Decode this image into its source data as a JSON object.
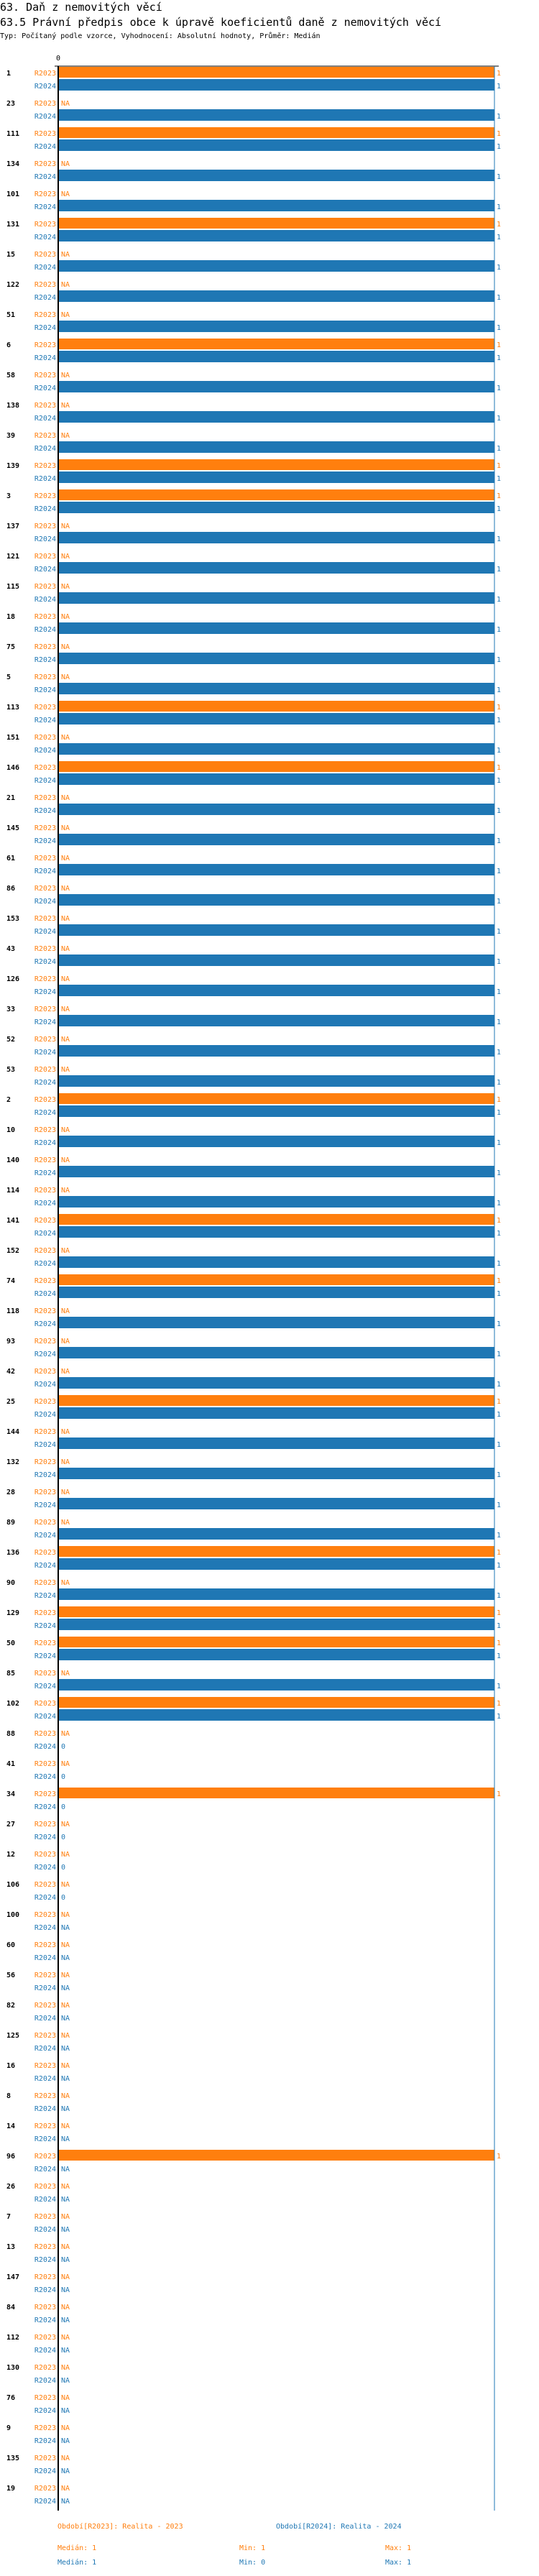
{
  "header": {
    "title": "63. Daň z nemovitých věcí",
    "subtitle": "63.5 Právní předpis obce k úpravě koeficientů daně z nemovitých věcí",
    "info": "Typ: Počítaný podle vzorce, Vyhodnocení: Absolutní hodnoty, Průměr: Medián"
  },
  "colors": {
    "R2023": "#ff7f0e",
    "R2024": "#1f77b4"
  },
  "chart_data": {
    "type": "bar",
    "orientation": "horizontal",
    "xlim": [
      0,
      1
    ],
    "x_ticks": [
      "0"
    ],
    "series_names": [
      "R2023",
      "R2024"
    ],
    "na_label": "NA",
    "groups": [
      {
        "name": "1",
        "R2023": 1,
        "R2024": 1
      },
      {
        "name": "23",
        "R2023": null,
        "R2024": 1
      },
      {
        "name": "111",
        "R2023": 1,
        "R2024": 1
      },
      {
        "name": "134",
        "R2023": null,
        "R2024": 1
      },
      {
        "name": "101",
        "R2023": null,
        "R2024": 1
      },
      {
        "name": "131",
        "R2023": 1,
        "R2024": 1
      },
      {
        "name": "15",
        "R2023": null,
        "R2024": 1
      },
      {
        "name": "122",
        "R2023": null,
        "R2024": 1
      },
      {
        "name": "51",
        "R2023": null,
        "R2024": 1
      },
      {
        "name": "6",
        "R2023": 1,
        "R2024": 1
      },
      {
        "name": "58",
        "R2023": null,
        "R2024": 1
      },
      {
        "name": "138",
        "R2023": null,
        "R2024": 1
      },
      {
        "name": "39",
        "R2023": null,
        "R2024": 1
      },
      {
        "name": "139",
        "R2023": 1,
        "R2024": 1
      },
      {
        "name": "3",
        "R2023": 1,
        "R2024": 1
      },
      {
        "name": "137",
        "R2023": null,
        "R2024": 1
      },
      {
        "name": "121",
        "R2023": null,
        "R2024": 1
      },
      {
        "name": "115",
        "R2023": null,
        "R2024": 1
      },
      {
        "name": "18",
        "R2023": null,
        "R2024": 1
      },
      {
        "name": "75",
        "R2023": null,
        "R2024": 1
      },
      {
        "name": "5",
        "R2023": null,
        "R2024": 1
      },
      {
        "name": "113",
        "R2023": 1,
        "R2024": 1
      },
      {
        "name": "151",
        "R2023": null,
        "R2024": 1
      },
      {
        "name": "146",
        "R2023": 1,
        "R2024": 1
      },
      {
        "name": "21",
        "R2023": null,
        "R2024": 1
      },
      {
        "name": "145",
        "R2023": null,
        "R2024": 1
      },
      {
        "name": "61",
        "R2023": null,
        "R2024": 1
      },
      {
        "name": "86",
        "R2023": null,
        "R2024": 1
      },
      {
        "name": "153",
        "R2023": null,
        "R2024": 1
      },
      {
        "name": "43",
        "R2023": null,
        "R2024": 1
      },
      {
        "name": "126",
        "R2023": null,
        "R2024": 1
      },
      {
        "name": "33",
        "R2023": null,
        "R2024": 1
      },
      {
        "name": "52",
        "R2023": null,
        "R2024": 1
      },
      {
        "name": "53",
        "R2023": null,
        "R2024": 1
      },
      {
        "name": "2",
        "R2023": 1,
        "R2024": 1
      },
      {
        "name": "10",
        "R2023": null,
        "R2024": 1
      },
      {
        "name": "140",
        "R2023": null,
        "R2024": 1
      },
      {
        "name": "114",
        "R2023": null,
        "R2024": 1
      },
      {
        "name": "141",
        "R2023": 1,
        "R2024": 1
      },
      {
        "name": "152",
        "R2023": null,
        "R2024": 1
      },
      {
        "name": "74",
        "R2023": 1,
        "R2024": 1
      },
      {
        "name": "118",
        "R2023": null,
        "R2024": 1
      },
      {
        "name": "93",
        "R2023": null,
        "R2024": 1
      },
      {
        "name": "42",
        "R2023": null,
        "R2024": 1
      },
      {
        "name": "25",
        "R2023": 1,
        "R2024": 1
      },
      {
        "name": "144",
        "R2023": null,
        "R2024": 1
      },
      {
        "name": "132",
        "R2023": null,
        "R2024": 1
      },
      {
        "name": "28",
        "R2023": null,
        "R2024": 1
      },
      {
        "name": "89",
        "R2023": null,
        "R2024": 1
      },
      {
        "name": "136",
        "R2023": 1,
        "R2024": 1
      },
      {
        "name": "90",
        "R2023": null,
        "R2024": 1
      },
      {
        "name": "129",
        "R2023": 1,
        "R2024": 1
      },
      {
        "name": "50",
        "R2023": 1,
        "R2024": 1
      },
      {
        "name": "85",
        "R2023": null,
        "R2024": 1
      },
      {
        "name": "102",
        "R2023": 1,
        "R2024": 1
      },
      {
        "name": "88",
        "R2023": null,
        "R2024": 0
      },
      {
        "name": "41",
        "R2023": null,
        "R2024": 0
      },
      {
        "name": "34",
        "R2023": 1,
        "R2024": 0
      },
      {
        "name": "27",
        "R2023": null,
        "R2024": 0
      },
      {
        "name": "12",
        "R2023": null,
        "R2024": 0
      },
      {
        "name": "106",
        "R2023": null,
        "R2024": 0
      },
      {
        "name": "100",
        "R2023": null,
        "R2024": null
      },
      {
        "name": "60",
        "R2023": null,
        "R2024": null
      },
      {
        "name": "56",
        "R2023": null,
        "R2024": null
      },
      {
        "name": "82",
        "R2023": null,
        "R2024": null
      },
      {
        "name": "125",
        "R2023": null,
        "R2024": null
      },
      {
        "name": "16",
        "R2023": null,
        "R2024": null
      },
      {
        "name": "8",
        "R2023": null,
        "R2024": null
      },
      {
        "name": "14",
        "R2023": null,
        "R2024": null
      },
      {
        "name": "96",
        "R2023": 1,
        "R2024": null
      },
      {
        "name": "26",
        "R2023": null,
        "R2024": null
      },
      {
        "name": "7",
        "R2023": null,
        "R2024": null
      },
      {
        "name": "13",
        "R2023": null,
        "R2024": null
      },
      {
        "name": "147",
        "R2023": null,
        "R2024": null
      },
      {
        "name": "84",
        "R2023": null,
        "R2024": null
      },
      {
        "name": "112",
        "R2023": null,
        "R2024": null
      },
      {
        "name": "130",
        "R2023": null,
        "R2024": null
      },
      {
        "name": "76",
        "R2023": null,
        "R2024": null
      },
      {
        "name": "9",
        "R2023": null,
        "R2024": null
      },
      {
        "name": "135",
        "R2023": null,
        "R2024": null
      },
      {
        "name": "19",
        "R2023": null,
        "R2024": null
      }
    ]
  },
  "legend": {
    "r2023": {
      "title": "Období[R2023]: Realita - 2023",
      "median": "Medián: 1",
      "min": "Min: 1",
      "max": "Max: 1"
    },
    "r2024": {
      "title": "Období[R2024]: Realita - 2024",
      "median": "Medián: 1",
      "min": "Min: 0",
      "max": "Max: 1"
    }
  }
}
